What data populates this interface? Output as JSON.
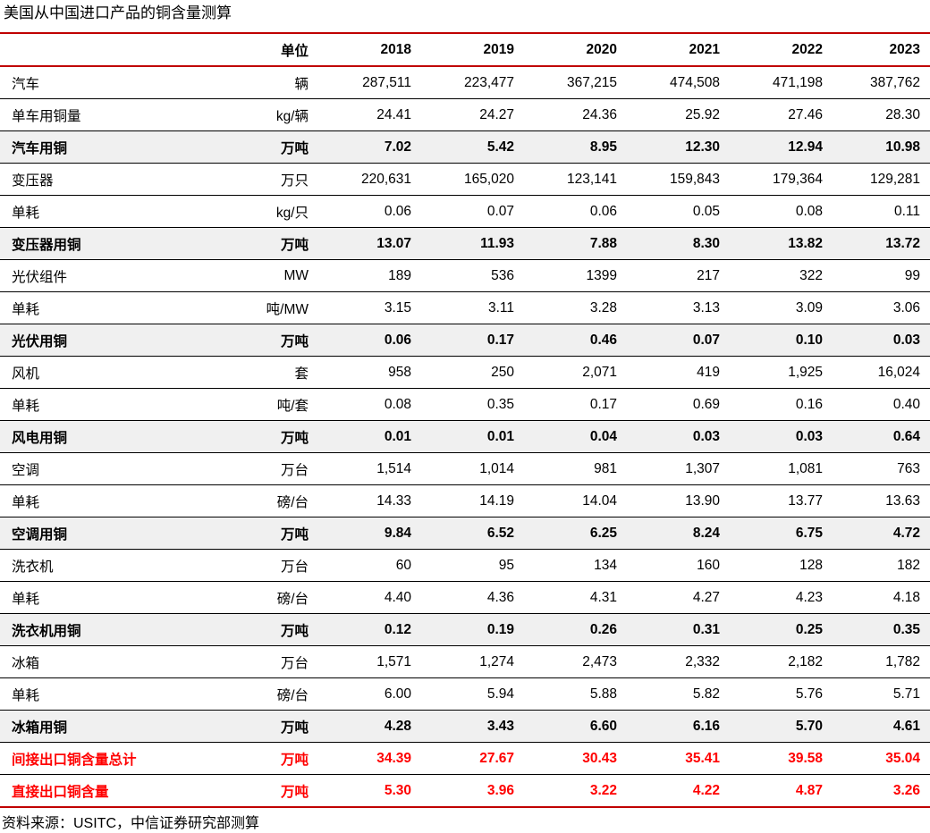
{
  "title": "美国从中国进口产品的铜含量测算",
  "source": "资料来源：USITC，中信证券研究部测算",
  "colors": {
    "rule_red": "#c00000",
    "highlight_text_red": "#ff0000",
    "subtotal_row_bg": "#f0f0f0"
  },
  "table": {
    "headers": [
      "",
      "单位",
      "2018",
      "2019",
      "2020",
      "2021",
      "2022",
      "2023"
    ],
    "rows": [
      {
        "label": "汽车",
        "unit": "辆",
        "values": [
          "287,511",
          "223,477",
          "367,215",
          "474,508",
          "471,198",
          "387,762"
        ],
        "style": "normal"
      },
      {
        "label": "单车用铜量",
        "unit": "kg/辆",
        "values": [
          "24.41",
          "24.27",
          "24.36",
          "25.92",
          "27.46",
          "28.30"
        ],
        "style": "normal"
      },
      {
        "label": "汽车用铜",
        "unit": "万吨",
        "values": [
          "7.02",
          "5.42",
          "8.95",
          "12.30",
          "12.94",
          "10.98"
        ],
        "style": "subtotal"
      },
      {
        "label": "变压器",
        "unit": "万只",
        "values": [
          "220,631",
          "165,020",
          "123,141",
          "159,843",
          "179,364",
          "129,281"
        ],
        "style": "normal"
      },
      {
        "label": "单耗",
        "unit": "kg/只",
        "values": [
          "0.06",
          "0.07",
          "0.06",
          "0.05",
          "0.08",
          "0.11"
        ],
        "style": "normal"
      },
      {
        "label": "变压器用铜",
        "unit": "万吨",
        "values": [
          "13.07",
          "11.93",
          "7.88",
          "8.30",
          "13.82",
          "13.72"
        ],
        "style": "subtotal"
      },
      {
        "label": "光伏组件",
        "unit": "MW",
        "values": [
          "189",
          "536",
          "1399",
          "217",
          "322",
          "99"
        ],
        "style": "normal"
      },
      {
        "label": "单耗",
        "unit": "吨/MW",
        "values": [
          "3.15",
          "3.11",
          "3.28",
          "3.13",
          "3.09",
          "3.06"
        ],
        "style": "normal"
      },
      {
        "label": "光伏用铜",
        "unit": "万吨",
        "values": [
          "0.06",
          "0.17",
          "0.46",
          "0.07",
          "0.10",
          "0.03"
        ],
        "style": "subtotal"
      },
      {
        "label": "风机",
        "unit": "套",
        "values": [
          "958",
          "250",
          "2,071",
          "419",
          "1,925",
          "16,024"
        ],
        "style": "normal"
      },
      {
        "label": "单耗",
        "unit": "吨/套",
        "values": [
          "0.08",
          "0.35",
          "0.17",
          "0.69",
          "0.16",
          "0.40"
        ],
        "style": "normal"
      },
      {
        "label": "风电用铜",
        "unit": "万吨",
        "values": [
          "0.01",
          "0.01",
          "0.04",
          "0.03",
          "0.03",
          "0.64"
        ],
        "style": "subtotal"
      },
      {
        "label": "空调",
        "unit": "万台",
        "values": [
          "1,514",
          "1,014",
          "981",
          "1,307",
          "1,081",
          "763"
        ],
        "style": "normal"
      },
      {
        "label": "单耗",
        "unit": "磅/台",
        "values": [
          "14.33",
          "14.19",
          "14.04",
          "13.90",
          "13.77",
          "13.63"
        ],
        "style": "normal"
      },
      {
        "label": "空调用铜",
        "unit": "万吨",
        "values": [
          "9.84",
          "6.52",
          "6.25",
          "8.24",
          "6.75",
          "4.72"
        ],
        "style": "subtotal"
      },
      {
        "label": "洗衣机",
        "unit": "万台",
        "values": [
          "60",
          "95",
          "134",
          "160",
          "128",
          "182"
        ],
        "style": "normal"
      },
      {
        "label": "单耗",
        "unit": "磅/台",
        "values": [
          "4.40",
          "4.36",
          "4.31",
          "4.27",
          "4.23",
          "4.18"
        ],
        "style": "normal"
      },
      {
        "label": "洗衣机用铜",
        "unit": "万吨",
        "values": [
          "0.12",
          "0.19",
          "0.26",
          "0.31",
          "0.25",
          "0.35"
        ],
        "style": "subtotal"
      },
      {
        "label": "冰箱",
        "unit": "万台",
        "values": [
          "1,571",
          "1,274",
          "2,473",
          "2,332",
          "2,182",
          "1,782"
        ],
        "style": "normal"
      },
      {
        "label": "单耗",
        "unit": "磅/台",
        "values": [
          "6.00",
          "5.94",
          "5.88",
          "5.82",
          "5.76",
          "5.71"
        ],
        "style": "normal"
      },
      {
        "label": "冰箱用铜",
        "unit": "万吨",
        "values": [
          "4.28",
          "3.43",
          "6.60",
          "6.16",
          "5.70",
          "4.61"
        ],
        "style": "subtotal"
      },
      {
        "label": "间接出口铜含量总计",
        "unit": "万吨",
        "values": [
          "34.39",
          "27.67",
          "30.43",
          "35.41",
          "39.58",
          "35.04"
        ],
        "style": "highlight"
      },
      {
        "label": "直接出口铜含量",
        "unit": "万吨",
        "values": [
          "5.30",
          "3.96",
          "3.22",
          "4.22",
          "4.87",
          "3.26"
        ],
        "style": "highlight"
      }
    ]
  }
}
